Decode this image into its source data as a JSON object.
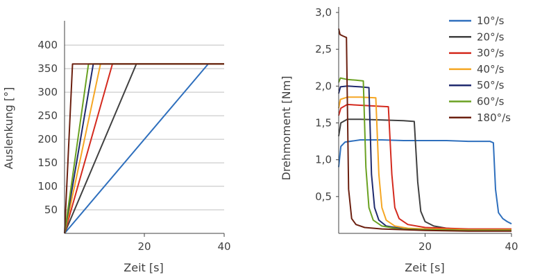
{
  "chart_data": [
    {
      "type": "line",
      "title": "",
      "xlabel": "Zeit [s]",
      "ylabel": "Auslenkung [°]",
      "xlim": [
        0,
        40
      ],
      "ylim": [
        0,
        440
      ],
      "x_ticks": [
        20,
        40
      ],
      "x_tick_labels": [
        "20",
        "40"
      ],
      "y_ticks": [
        50,
        100,
        150,
        200,
        250,
        300,
        350,
        400
      ],
      "y_tick_labels": [
        "50",
        "100",
        "150",
        "200",
        "250",
        "300",
        "350",
        "400"
      ],
      "grid": "horizontal",
      "legend": "none",
      "series": [
        {
          "color": "#2e6fbd",
          "x": [
            0,
            36,
            40
          ],
          "y": [
            0,
            360,
            360
          ]
        },
        {
          "color": "#404040",
          "x": [
            0,
            18,
            40
          ],
          "y": [
            0,
            360,
            360
          ]
        },
        {
          "color": "#d42a1e",
          "x": [
            0,
            12,
            40
          ],
          "y": [
            0,
            360,
            360
          ]
        },
        {
          "color": "#f5a623",
          "x": [
            0,
            9,
            40
          ],
          "y": [
            0,
            360,
            360
          ]
        },
        {
          "color": "#1f2a6e",
          "x": [
            0,
            7.2,
            40
          ],
          "y": [
            0,
            360,
            360
          ]
        },
        {
          "color": "#6aa121",
          "x": [
            0,
            6,
            40
          ],
          "y": [
            0,
            360,
            360
          ]
        },
        {
          "color": "#6b1f0f",
          "x": [
            0,
            2,
            40
          ],
          "y": [
            0,
            360,
            360
          ]
        }
      ]
    },
    {
      "type": "line",
      "title": "",
      "xlabel": "Zeit [s]",
      "ylabel": "Drehmoment [Nm]",
      "xlim": [
        0,
        40
      ],
      "ylim": [
        0,
        3.0
      ],
      "x_ticks": [
        20,
        40
      ],
      "x_tick_labels": [
        "20",
        "40"
      ],
      "y_ticks": [
        0.5,
        1.0,
        1.5,
        2.0,
        2.5,
        3.0
      ],
      "y_tick_labels": [
        "0,5",
        "1,0",
        "1,5",
        "2,0",
        "2,5",
        "3,0"
      ],
      "grid": "none",
      "legend": "top-right",
      "series": [
        {
          "name": "10°/s",
          "color": "#2e6fbd",
          "x": [
            0,
            0.5,
            1.5,
            5,
            10,
            15,
            20,
            25,
            30,
            35,
            35.8,
            36.3,
            37,
            38,
            39,
            40
          ],
          "y": [
            0.9,
            1.18,
            1.24,
            1.27,
            1.27,
            1.26,
            1.26,
            1.26,
            1.25,
            1.25,
            1.23,
            0.6,
            0.28,
            0.2,
            0.16,
            0.13
          ]
        },
        {
          "name": "20°/s",
          "color": "#404040",
          "x": [
            0,
            0.5,
            2,
            5,
            10,
            15,
            17.5,
            18.3,
            19,
            20,
            22,
            25,
            30,
            35,
            40
          ],
          "y": [
            1.32,
            1.5,
            1.55,
            1.55,
            1.54,
            1.53,
            1.52,
            0.7,
            0.3,
            0.16,
            0.1,
            0.07,
            0.05,
            0.04,
            0.04
          ]
        },
        {
          "name": "30°/s",
          "color": "#d42a1e",
          "x": [
            0,
            0.5,
            2,
            5,
            8,
            11.5,
            12.3,
            13,
            14,
            16,
            20,
            25,
            30,
            35,
            40
          ],
          "y": [
            1.6,
            1.7,
            1.75,
            1.74,
            1.73,
            1.72,
            0.8,
            0.35,
            0.2,
            0.12,
            0.08,
            0.07,
            0.06,
            0.06,
            0.06
          ]
        },
        {
          "name": "40°/s",
          "color": "#f5a623",
          "x": [
            0,
            0.4,
            2,
            5,
            8.6,
            9.3,
            10,
            11,
            13,
            16,
            20,
            30,
            40
          ],
          "y": [
            1.7,
            1.82,
            1.85,
            1.85,
            1.84,
            0.8,
            0.35,
            0.18,
            0.1,
            0.07,
            0.06,
            0.05,
            0.05
          ]
        },
        {
          "name": "50°/s",
          "color": "#1f2a6e",
          "x": [
            0,
            0.4,
            2,
            5,
            7,
            7.6,
            8.3,
            9.3,
            11,
            15,
            20,
            30,
            40
          ],
          "y": [
            1.9,
            1.99,
            2.0,
            1.99,
            1.98,
            0.8,
            0.35,
            0.18,
            0.1,
            0.06,
            0.05,
            0.04,
            0.04
          ]
        },
        {
          "name": "60°/s",
          "color": "#6aa121",
          "x": [
            0,
            0.4,
            2,
            4,
            5.7,
            6.3,
            7,
            8,
            10,
            14,
            20,
            30,
            40
          ],
          "y": [
            2.05,
            2.11,
            2.09,
            2.08,
            2.07,
            0.9,
            0.35,
            0.18,
            0.1,
            0.06,
            0.05,
            0.04,
            0.04
          ]
        },
        {
          "name": "180°/s",
          "color": "#6b1f0f",
          "x": [
            0,
            0.3,
            1,
            1.8,
            2.3,
            3,
            4,
            6,
            10,
            20,
            30,
            40
          ],
          "y": [
            2.78,
            2.7,
            2.68,
            2.66,
            0.6,
            0.2,
            0.12,
            0.08,
            0.06,
            0.04,
            0.03,
            0.03
          ]
        }
      ]
    }
  ]
}
